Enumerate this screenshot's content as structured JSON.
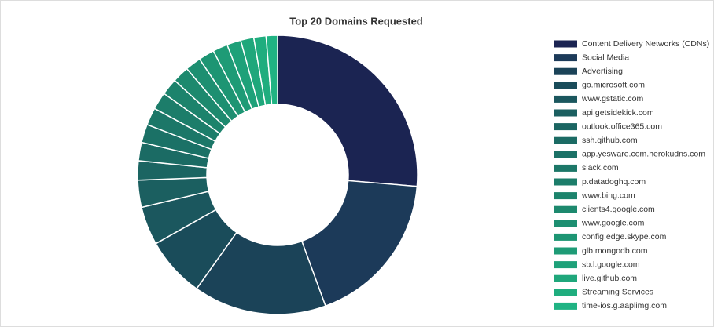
{
  "chart_data": {
    "type": "donut",
    "title": "Top 20 Domains Requested",
    "categories": [
      "Content Delivery Networks (CDNs)",
      "Social Media",
      "Advertising",
      "go.microsoft.com",
      "www.gstatic.com",
      "api.getsidekick.com",
      "outlook.office365.com",
      "ssh.github.com",
      "app.yesware.com.herokudns.com",
      "slack.com",
      "p.datadoghq.com",
      "www.bing.com",
      "clients4.google.com",
      "www.google.com",
      "config.edge.skype.com",
      "glb.mongodb.com",
      "sb.l.google.com",
      "live.github.com",
      "Streaming Services",
      "time-ios.g.aaplimg.com"
    ],
    "values": [
      26,
      17.9,
      15.2,
      6.9,
      4.4,
      3.1,
      2.2,
      2.1,
      2.1,
      2.0,
      2.0,
      1.9,
      1.9,
      1.8,
      1.8,
      1.7,
      1.6,
      1.5,
      1.4,
      1.3
    ],
    "colors": [
      "#1b2452",
      "#1c3a59",
      "#1b4358",
      "#1a4c5a",
      "#1b575e",
      "#1b5f60",
      "#1b6562",
      "#1b6b64",
      "#1b7166",
      "#1c7768",
      "#1c7d6a",
      "#1c836c",
      "#1d896e",
      "#1d8f71",
      "#1d9573",
      "#1e9b76",
      "#1ea179",
      "#1fa77b",
      "#1fad7e",
      "#20b383"
    ],
    "legend_position": "right"
  }
}
